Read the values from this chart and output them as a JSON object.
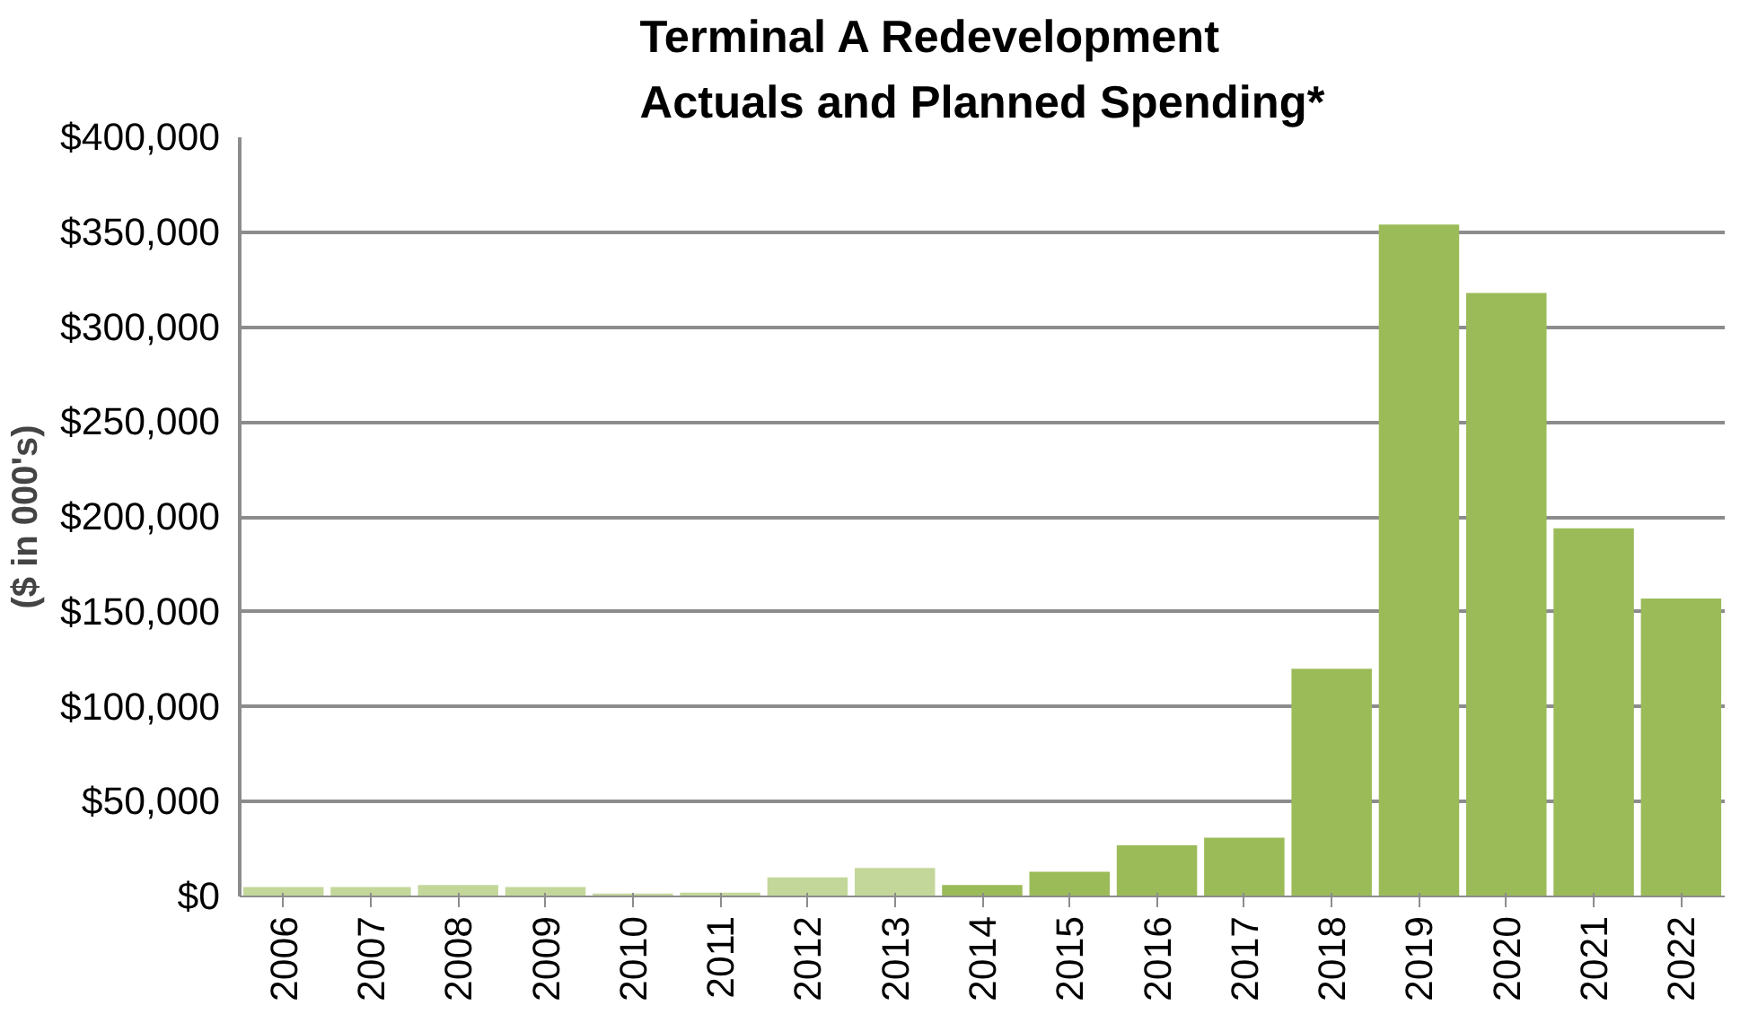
{
  "chart_data": {
    "type": "bar",
    "title": "Terminal A Redevelopment\nActuals and Planned Spending*",
    "ylabel": "($ in 000's)",
    "categories": [
      "2006",
      "2007",
      "2008",
      "2009",
      "2010",
      "2011",
      "2012",
      "2013",
      "2014",
      "2015",
      "2016",
      "2017",
      "2018",
      "2019",
      "2020",
      "2021",
      "2022"
    ],
    "values": [
      5000,
      5000,
      6000,
      5000,
      1500,
      2000,
      10000,
      15000,
      6000,
      13000,
      27000,
      31000,
      120000,
      354000,
      318000,
      194000,
      157000
    ],
    "colors": [
      "#c4d79b",
      "#c4d79b",
      "#c4d79b",
      "#c4d79b",
      "#c4d79b",
      "#c4d79b",
      "#c4d79b",
      "#c4d79b",
      "#9bbb59",
      "#9bbb59",
      "#9bbb59",
      "#9bbb59",
      "#9bbb59",
      "#9bbb59",
      "#9bbb59",
      "#9bbb59",
      "#9bbb59"
    ],
    "ylim": [
      0,
      400000
    ],
    "yticks": [
      {
        "value": 0,
        "label": "$0"
      },
      {
        "value": 50000,
        "label": "$50,000"
      },
      {
        "value": 100000,
        "label": "$100,000"
      },
      {
        "value": 150000,
        "label": "$150,000"
      },
      {
        "value": 200000,
        "label": "$200,000"
      },
      {
        "value": 250000,
        "label": "$250,000"
      },
      {
        "value": 300000,
        "label": "$300,000"
      },
      {
        "value": 350000,
        "label": "$350,000"
      },
      {
        "value": 400000,
        "label": "$400,000"
      }
    ],
    "grid": "y"
  }
}
